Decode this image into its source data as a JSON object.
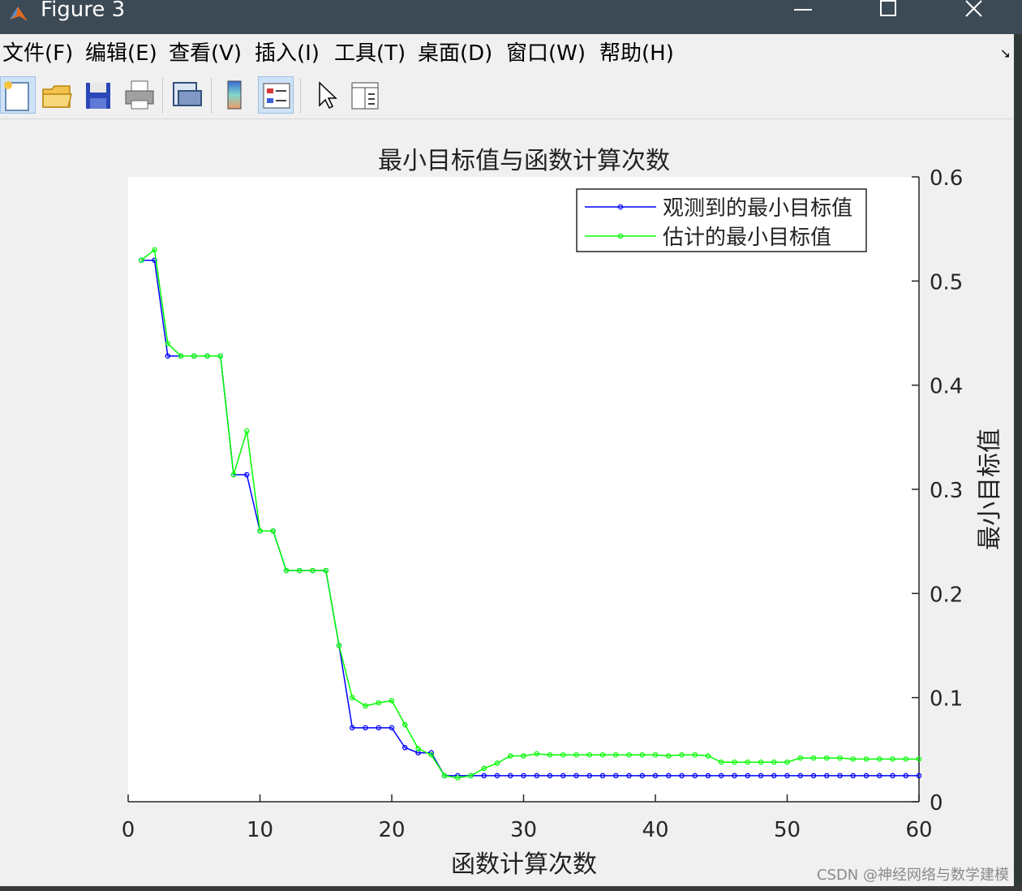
{
  "window": {
    "title": "Figure 3",
    "controls": {
      "minimize_icon": "minimize-icon",
      "maximize_icon": "maximize-icon",
      "close_icon": "close-icon"
    }
  },
  "menubar": {
    "items": [
      "文件(F)",
      "编辑(E)",
      "查看(V)",
      "插入(I)",
      "工具(T)",
      "桌面(D)",
      "窗口(W)",
      "帮助(H)"
    ],
    "corner_icon": "dock-arrow-icon"
  },
  "toolbar": {
    "buttons": [
      {
        "icon": "new-figure-icon",
        "pressed": true
      },
      {
        "icon": "open-folder-icon",
        "pressed": false
      },
      {
        "icon": "save-icon",
        "pressed": false
      },
      {
        "icon": "print-icon",
        "pressed": false
      },
      {
        "icon": "link-plot-icon",
        "pressed": false
      },
      {
        "icon": "colorbar-icon",
        "pressed": false
      },
      {
        "icon": "legend-icon",
        "pressed": true
      },
      {
        "icon": "pointer-icon",
        "pressed": false
      },
      {
        "icon": "property-inspector-icon",
        "pressed": false
      }
    ]
  },
  "chart_data": {
    "type": "line",
    "title": "最小目标值与函数计算次数",
    "xlabel": "函数计算次数",
    "ylabel": "最小目标值",
    "xlim": [
      0,
      60
    ],
    "ylim": [
      0,
      0.6
    ],
    "xticks": [
      "0",
      "10",
      "20",
      "30",
      "40",
      "50",
      "60"
    ],
    "yticks": [
      "0",
      "0.1",
      "0.2",
      "0.3",
      "0.4",
      "0.5",
      "0.6"
    ],
    "y_axis_side": "right",
    "grid": false,
    "legend_position": "top-right",
    "x": [
      1,
      2,
      3,
      4,
      5,
      6,
      7,
      8,
      9,
      10,
      11,
      12,
      13,
      14,
      15,
      16,
      17,
      18,
      19,
      20,
      21,
      22,
      23,
      24,
      25,
      26,
      27,
      28,
      29,
      30,
      31,
      32,
      33,
      34,
      35,
      36,
      37,
      38,
      39,
      40,
      41,
      42,
      43,
      44,
      45,
      46,
      47,
      48,
      49,
      50,
      51,
      52,
      53,
      54,
      55,
      56,
      57,
      58,
      59,
      60
    ],
    "series": [
      {
        "name": "观测到的最小目标值",
        "color": "#0000ff",
        "values": [
          0.52,
          0.52,
          0.428,
          0.428,
          0.428,
          0.428,
          0.428,
          0.314,
          0.314,
          0.26,
          0.26,
          0.222,
          0.222,
          0.222,
          0.222,
          0.15,
          0.071,
          0.071,
          0.071,
          0.071,
          0.052,
          0.047,
          0.047,
          0.025,
          0.025,
          0.025,
          0.025,
          0.025,
          0.025,
          0.025,
          0.025,
          0.025,
          0.025,
          0.025,
          0.025,
          0.025,
          0.025,
          0.025,
          0.025,
          0.025,
          0.025,
          0.025,
          0.025,
          0.025,
          0.025,
          0.025,
          0.025,
          0.025,
          0.025,
          0.025,
          0.025,
          0.025,
          0.025,
          0.025,
          0.025,
          0.025,
          0.025,
          0.025,
          0.025,
          0.025
        ]
      },
      {
        "name": "估计的最小目标值",
        "color": "#00ff00",
        "values": [
          0.52,
          0.53,
          0.44,
          0.428,
          0.428,
          0.428,
          0.428,
          0.314,
          0.356,
          0.26,
          0.26,
          0.222,
          0.222,
          0.222,
          0.222,
          0.15,
          0.1,
          0.092,
          0.095,
          0.097,
          0.074,
          0.051,
          0.045,
          0.025,
          0.023,
          0.025,
          0.032,
          0.037,
          0.044,
          0.044,
          0.046,
          0.045,
          0.045,
          0.045,
          0.045,
          0.045,
          0.045,
          0.045,
          0.045,
          0.045,
          0.044,
          0.045,
          0.045,
          0.044,
          0.038,
          0.038,
          0.038,
          0.038,
          0.038,
          0.038,
          0.042,
          0.042,
          0.042,
          0.042,
          0.041,
          0.041,
          0.041,
          0.041,
          0.041,
          0.041
        ]
      }
    ]
  },
  "watermark": "CSDN @神经网络与数学建模"
}
